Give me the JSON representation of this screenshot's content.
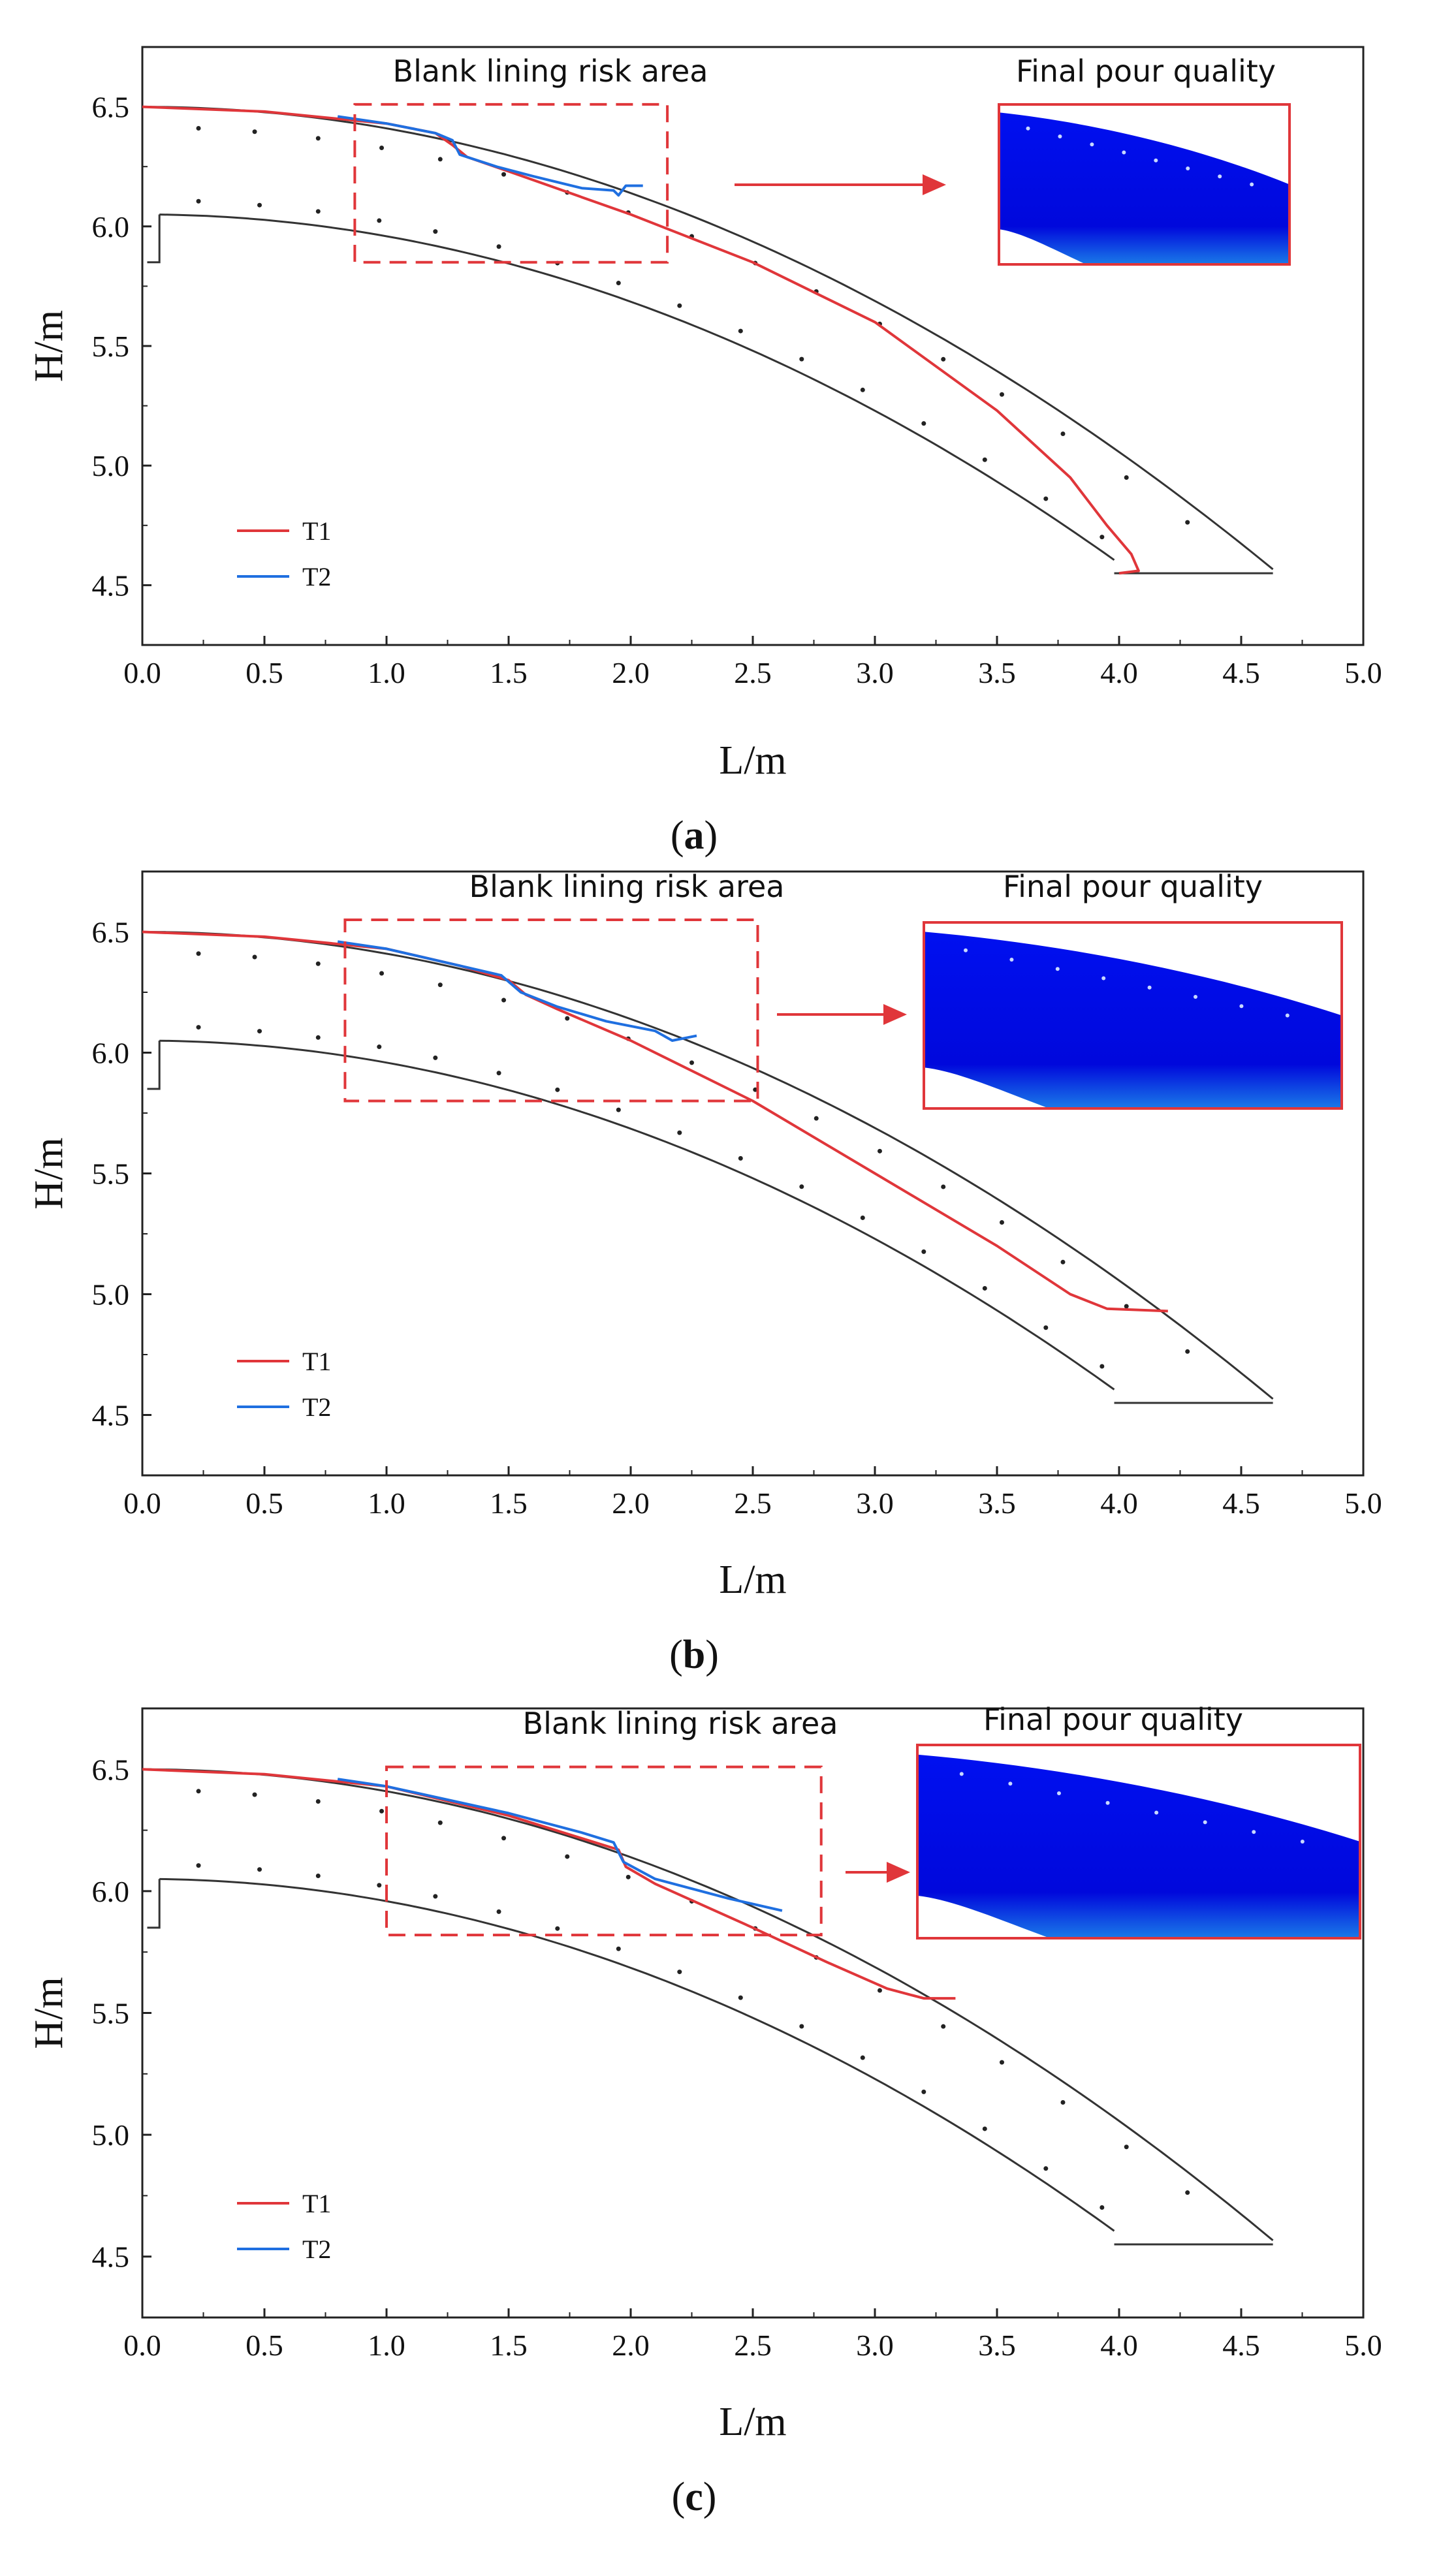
{
  "chart_data": [
    {
      "type": "line",
      "panel": "a",
      "caption_letter": "a",
      "xlabel": "L/m",
      "ylabel": "H/m",
      "xlim": [
        0.0,
        5.0
      ],
      "ylim": [
        4.25,
        6.75
      ],
      "xticks": [
        "0.0",
        "0.5",
        "1.0",
        "1.5",
        "2.0",
        "2.5",
        "3.0",
        "3.5",
        "4.0",
        "4.5",
        "5.0"
      ],
      "yticks": [
        "4.5",
        "5.0",
        "5.5",
        "6.0",
        "6.5"
      ],
      "legend": [
        "T1",
        "T2"
      ],
      "colors": {
        "T1": "#e0363a",
        "T2": "#1f6fe0",
        "structure": "#333333",
        "risk_box": "#e0363a",
        "fill": "#0000e8"
      },
      "annotation_risk": "Blank lining risk area",
      "annotation_quality": "Final pour quality",
      "risk_box": {
        "x": [
          0.87,
          2.15
        ],
        "y": [
          5.85,
          6.51
        ]
      },
      "series": [
        {
          "name": "T1",
          "points": [
            [
              0.0,
              6.5
            ],
            [
              0.5,
              6.48
            ],
            [
              1.0,
              6.43
            ],
            [
              1.2,
              6.39
            ],
            [
              1.27,
              6.34
            ],
            [
              1.33,
              6.29
            ],
            [
              1.5,
              6.23
            ],
            [
              2.0,
              6.05
            ],
            [
              2.5,
              5.85
            ],
            [
              3.0,
              5.6
            ],
            [
              3.5,
              5.23
            ],
            [
              3.8,
              4.95
            ],
            [
              3.95,
              4.75
            ],
            [
              4.05,
              4.63
            ],
            [
              4.08,
              4.56
            ],
            [
              4.0,
              4.55
            ]
          ]
        },
        {
          "name": "T2",
          "points": [
            [
              0.8,
              6.46
            ],
            [
              1.0,
              6.43
            ],
            [
              1.2,
              6.39
            ],
            [
              1.27,
              6.36
            ],
            [
              1.3,
              6.3
            ],
            [
              1.45,
              6.25
            ],
            [
              1.6,
              6.21
            ],
            [
              1.8,
              6.16
            ],
            [
              1.93,
              6.15
            ],
            [
              1.95,
              6.13
            ],
            [
              1.98,
              6.17
            ],
            [
              2.05,
              6.17
            ]
          ]
        }
      ]
    },
    {
      "type": "line",
      "panel": "b",
      "caption_letter": "b",
      "xlabel": "L/m",
      "ylabel": "H/m",
      "xlim": [
        0.0,
        5.0
      ],
      "ylim": [
        4.25,
        6.75
      ],
      "xticks": [
        "0.0",
        "0.5",
        "1.0",
        "1.5",
        "2.0",
        "2.5",
        "3.0",
        "3.5",
        "4.0",
        "4.5",
        "5.0"
      ],
      "yticks": [
        "4.5",
        "5.0",
        "5.5",
        "6.0",
        "6.5"
      ],
      "legend": [
        "T1",
        "T2"
      ],
      "colors": {
        "T1": "#e0363a",
        "T2": "#1f6fe0",
        "structure": "#333333",
        "risk_box": "#e0363a",
        "fill": "#0000e8"
      },
      "annotation_risk": "Blank lining risk area",
      "annotation_quality": "Final pour quality",
      "risk_box": {
        "x": [
          0.83,
          2.52
        ],
        "y": [
          5.8,
          6.55
        ]
      },
      "series": [
        {
          "name": "T1",
          "points": [
            [
              0.0,
              6.5
            ],
            [
              0.5,
              6.48
            ],
            [
              1.0,
              6.43
            ],
            [
              1.3,
              6.36
            ],
            [
              1.5,
              6.3
            ],
            [
              1.57,
              6.24
            ],
            [
              1.7,
              6.18
            ],
            [
              2.0,
              6.05
            ],
            [
              2.5,
              5.8
            ],
            [
              3.0,
              5.5
            ],
            [
              3.5,
              5.2
            ],
            [
              3.8,
              5.0
            ],
            [
              3.95,
              4.94
            ],
            [
              4.2,
              4.93
            ]
          ]
        },
        {
          "name": "T2",
          "points": [
            [
              0.8,
              6.46
            ],
            [
              1.0,
              6.43
            ],
            [
              1.3,
              6.36
            ],
            [
              1.47,
              6.32
            ],
            [
              1.55,
              6.25
            ],
            [
              1.7,
              6.19
            ],
            [
              1.9,
              6.13
            ],
            [
              2.1,
              6.09
            ],
            [
              2.17,
              6.05
            ],
            [
              2.22,
              6.06
            ],
            [
              2.27,
              6.07
            ]
          ]
        }
      ]
    },
    {
      "type": "line",
      "panel": "c",
      "caption_letter": "c",
      "xlabel": "L/m",
      "ylabel": "H/m",
      "xlim": [
        0.0,
        5.0
      ],
      "ylim": [
        4.25,
        6.75
      ],
      "xticks": [
        "0.0",
        "0.5",
        "1.0",
        "1.5",
        "2.0",
        "2.5",
        "3.0",
        "3.5",
        "4.0",
        "4.5",
        "5.0"
      ],
      "yticks": [
        "4.5",
        "5.0",
        "5.5",
        "6.0",
        "6.5"
      ],
      "legend": [
        "T1",
        "T2"
      ],
      "colors": {
        "T1": "#e0363a",
        "T2": "#1f6fe0",
        "structure": "#333333",
        "risk_box": "#e0363a",
        "fill": "#0000e8"
      },
      "annotation_risk": "Blank lining risk area",
      "annotation_quality": "Final pour quality",
      "risk_box": {
        "x": [
          1.0,
          2.78
        ],
        "y": [
          5.82,
          6.51
        ]
      },
      "series": [
        {
          "name": "T1",
          "points": [
            [
              0.0,
              6.5
            ],
            [
              0.5,
              6.48
            ],
            [
              1.0,
              6.43
            ],
            [
              1.5,
              6.31
            ],
            [
              1.95,
              6.17
            ],
            [
              1.98,
              6.1
            ],
            [
              2.1,
              6.03
            ],
            [
              2.5,
              5.85
            ],
            [
              2.8,
              5.71
            ],
            [
              3.05,
              5.6
            ],
            [
              3.2,
              5.56
            ],
            [
              3.33,
              5.56
            ]
          ]
        },
        {
          "name": "T2",
          "points": [
            [
              0.8,
              6.46
            ],
            [
              1.0,
              6.43
            ],
            [
              1.5,
              6.32
            ],
            [
              1.8,
              6.24
            ],
            [
              1.93,
              6.2
            ],
            [
              1.97,
              6.12
            ],
            [
              2.1,
              6.05
            ],
            [
              2.4,
              5.97
            ],
            [
              2.62,
              5.92
            ]
          ]
        }
      ]
    }
  ]
}
